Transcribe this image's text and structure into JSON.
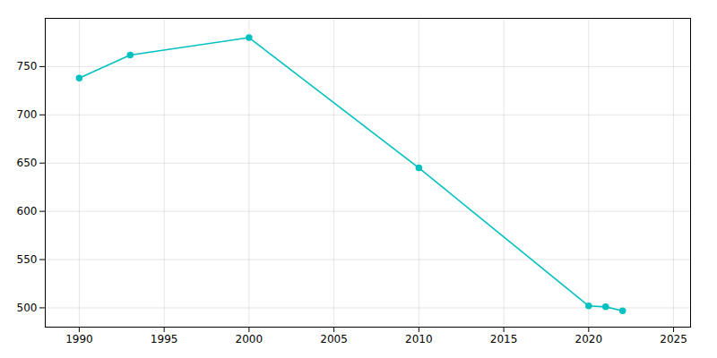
{
  "chart_data": {
    "type": "line",
    "x": [
      1990,
      1993,
      2000,
      2010,
      2020,
      2021,
      2022
    ],
    "values": [
      738,
      762,
      780,
      645,
      502,
      501,
      497
    ],
    "color": "#00C0C0",
    "marker": "o",
    "xlim": [
      1988,
      2026
    ],
    "ylim": [
      480,
      800
    ],
    "xticks": [
      1990,
      1995,
      2000,
      2005,
      2010,
      2015,
      2020,
      2025
    ],
    "yticks": [
      500,
      550,
      600,
      650,
      700,
      750
    ],
    "grid": true
  }
}
